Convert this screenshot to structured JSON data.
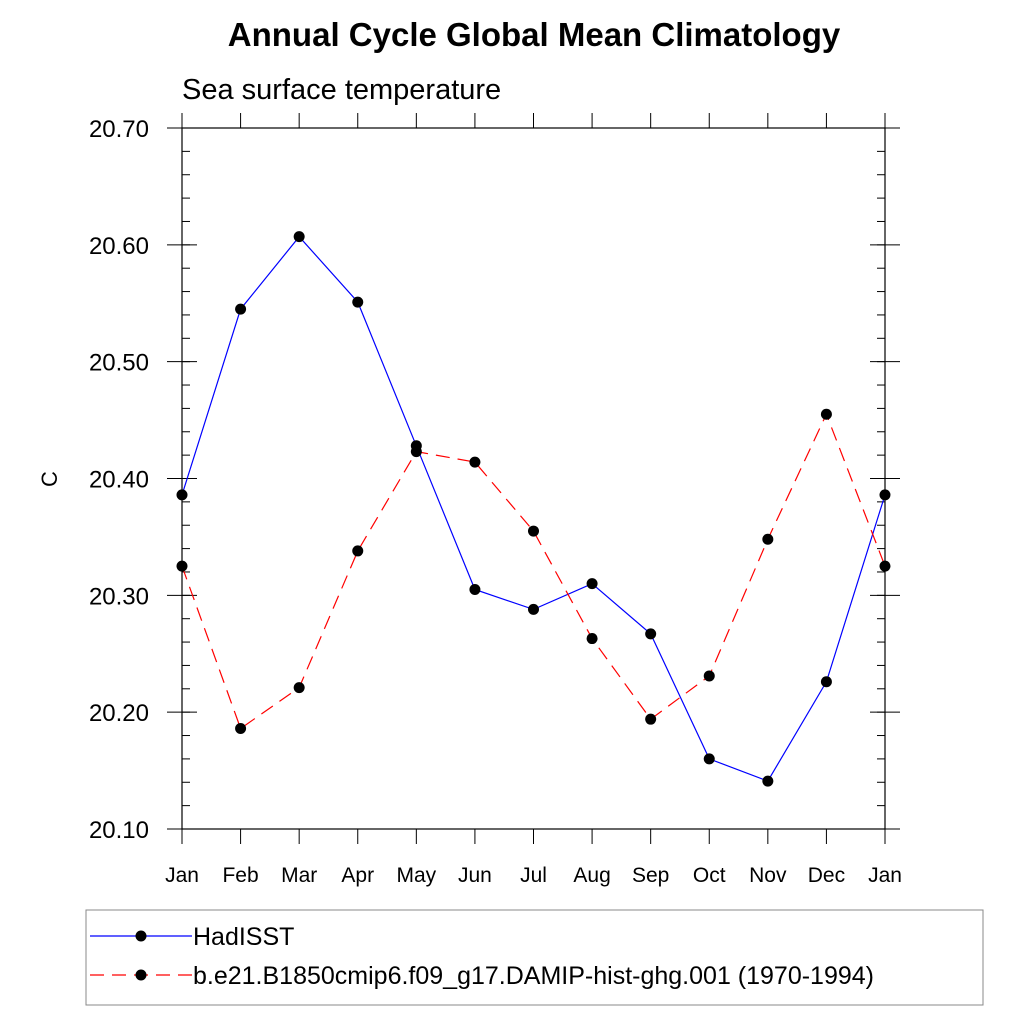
{
  "chart_data": {
    "type": "line",
    "title": "Annual Cycle Global Mean Climatology",
    "subtitle": "Sea surface temperature",
    "xlabel": "",
    "ylabel": "C",
    "categories": [
      "Jan",
      "Feb",
      "Mar",
      "Apr",
      "May",
      "Jun",
      "Jul",
      "Aug",
      "Sep",
      "Oct",
      "Nov",
      "Dec",
      "Jan"
    ],
    "ylim": [
      20.1,
      20.7
    ],
    "yticks": [
      "20.10",
      "20.20",
      "20.30",
      "20.40",
      "20.50",
      "20.60",
      "20.70"
    ],
    "grid": false,
    "legend_position": "bottom",
    "series": [
      {
        "name": "HadISST",
        "color": "#0000ff",
        "dash": "solid",
        "values": [
          20.386,
          20.545,
          20.607,
          20.551,
          20.428,
          20.305,
          20.288,
          20.31,
          20.267,
          20.16,
          20.141,
          20.226,
          20.386
        ]
      },
      {
        "name": "b.e21.B1850cmip6.f09_g17.DAMIP-hist-ghg.001 (1970-1994)",
        "color": "#ff0000",
        "dash": "dashed",
        "values": [
          20.325,
          20.186,
          20.221,
          20.338,
          20.423,
          20.414,
          20.355,
          20.263,
          20.194,
          20.231,
          20.348,
          20.455,
          20.325
        ]
      }
    ]
  }
}
